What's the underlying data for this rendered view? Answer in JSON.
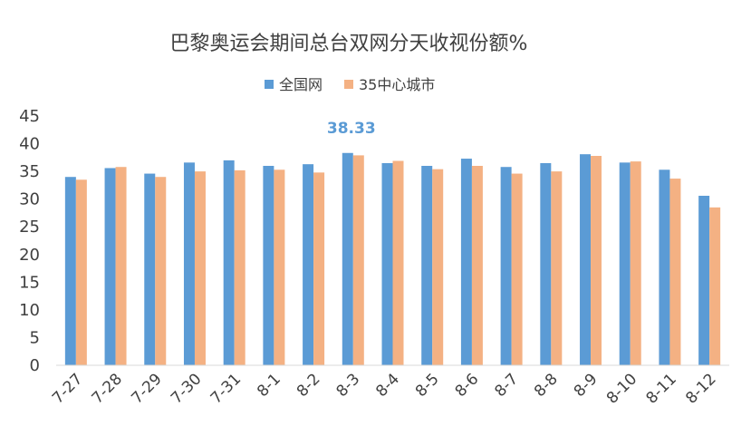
{
  "chart_data": {
    "type": "bar",
    "title": "巴黎奥运会期间总台双网分天收视份额%",
    "xlabel": "",
    "ylabel": "",
    "categories": [
      "7-27",
      "7-28",
      "7-29",
      "7-30",
      "7-31",
      "8-1",
      "8-2",
      "8-3",
      "8-4",
      "8-5",
      "8-6",
      "8-7",
      "8-8",
      "8-9",
      "8-10",
      "8-11",
      "8-12"
    ],
    "series": [
      {
        "name": "全国网",
        "color": "#5B9BD5",
        "values": [
          34.0,
          35.6,
          34.6,
          36.6,
          37.0,
          36.0,
          36.3,
          38.33,
          36.5,
          36.0,
          37.3,
          35.8,
          36.5,
          38.1,
          36.6,
          35.3,
          30.6
        ]
      },
      {
        "name": "35中心城市",
        "color": "#F4B183",
        "values": [
          33.5,
          35.8,
          34.0,
          35.0,
          35.2,
          35.3,
          34.8,
          37.9,
          36.9,
          35.4,
          36.0,
          34.6,
          35.0,
          37.8,
          36.8,
          33.7,
          28.5
        ]
      }
    ],
    "ylim": [
      0,
      45
    ],
    "yticks": [
      0,
      5,
      10,
      15,
      20,
      25,
      30,
      35,
      40,
      45
    ],
    "grid": false,
    "legend_position": "top-center",
    "annotations": [
      {
        "category": "8-3",
        "series": "全国网",
        "text": "38.33"
      }
    ]
  }
}
